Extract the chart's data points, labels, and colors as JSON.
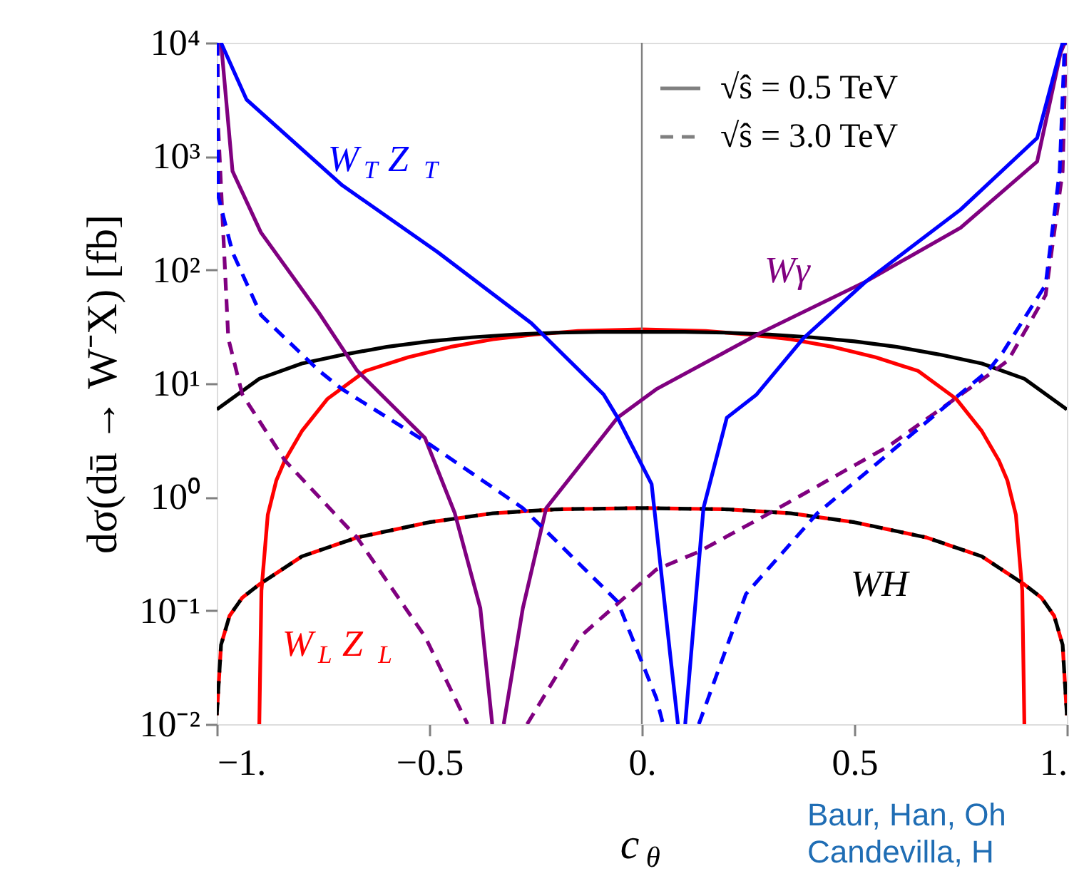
{
  "chart_data": {
    "type": "line",
    "xlabel": "c$_{θ}$",
    "ylabel": "dσ(dū → W⁻X) [fb]",
    "log": true,
    "grid": false,
    "marker": "none",
    "xlim": [
      -1,
      1
    ],
    "ylim": [
      0.01,
      10000
    ],
    "xticks": [
      {
        "value": -1,
        "label": "−1."
      },
      {
        "value": -0.5,
        "label": "−0.5"
      },
      {
        "value": 0,
        "label": "0."
      },
      0.5,
      {
        "value": 1,
        "label": "1."
      }
    ],
    "yticks": [
      {
        "value": 0.01,
        "label": "10⁻²"
      },
      {
        "value": 0.1,
        "label": "10⁻¹"
      },
      {
        "value": 1,
        "label": "10⁰"
      },
      {
        "value": 10,
        "label": "10¹"
      },
      {
        "value": 100,
        "label": "10²"
      },
      {
        "value": 1000,
        "label": "10³"
      },
      {
        "value": 10000,
        "label": "10⁴"
      }
    ],
    "ref_lines": [
      {
        "axis": "x",
        "value": 0,
        "color": "#808080"
      }
    ],
    "series": [
      {
        "name": "W$_{L}$Z$_{L}$",
        "color": "#ff0000",
        "line_style": "solid",
        "x": [
          -0.9,
          -0.895,
          -0.88,
          -0.86,
          -0.84,
          -0.8,
          -0.74,
          -0.65,
          -0.55,
          -0.45,
          -0.35,
          -0.25,
          -0.15,
          0,
          0.15,
          0.25,
          0.35,
          0.45,
          0.55,
          0.65,
          0.74,
          0.8,
          0.84,
          0.86,
          0.88,
          0.895,
          0.9
        ],
        "values": [
          0.01,
          0.15,
          0.7,
          1.4,
          2.1,
          3.8,
          7.3,
          12.9,
          17,
          21,
          24.5,
          27,
          29,
          30,
          29,
          27,
          24.5,
          21,
          17,
          12.9,
          7.3,
          3.8,
          2.1,
          1.4,
          0.7,
          0.15,
          0.01
        ]
      },
      {
        "color": "#ff0000",
        "line_style": "dashed",
        "x": [
          -1,
          -0.99,
          -0.97,
          -0.94,
          -0.9,
          -0.8,
          -0.67,
          -0.5,
          -0.35,
          -0.2,
          0,
          0.2,
          0.35,
          0.5,
          0.67,
          0.8,
          0.9,
          0.94,
          0.97,
          0.99,
          1
        ],
        "values": [
          0.012,
          0.05,
          0.09,
          0.13,
          0.17,
          0.3,
          0.44,
          0.6,
          0.72,
          0.78,
          0.8,
          0.78,
          0.72,
          0.6,
          0.44,
          0.3,
          0.17,
          0.13,
          0.09,
          0.05,
          0.012
        ]
      },
      {
        "name": "WH",
        "color": "#000000",
        "line_style": "solid",
        "x": [
          -1,
          -0.9,
          -0.8,
          -0.7,
          -0.6,
          -0.5,
          -0.4,
          -0.3,
          -0.2,
          -0.1,
          0,
          0.1,
          0.2,
          0.3,
          0.4,
          0.5,
          0.6,
          0.7,
          0.8,
          0.9,
          1
        ],
        "values": [
          5.9,
          11,
          15,
          18,
          21,
          23.5,
          25.5,
          27,
          28,
          28.5,
          28.5,
          28.5,
          28,
          27,
          25.5,
          23.5,
          21,
          18,
          15,
          11,
          5.9
        ]
      },
      {
        "color": "#000000",
        "line_style": "dashed",
        "x": [
          -1,
          -0.99,
          -0.97,
          -0.94,
          -0.9,
          -0.8,
          -0.67,
          -0.5,
          -0.35,
          -0.2,
          0,
          0.2,
          0.35,
          0.5,
          0.67,
          0.8,
          0.9,
          0.94,
          0.97,
          0.99,
          1
        ],
        "values": [
          0.012,
          0.05,
          0.09,
          0.13,
          0.17,
          0.3,
          0.44,
          0.6,
          0.72,
          0.78,
          0.8,
          0.78,
          0.72,
          0.6,
          0.44,
          0.3,
          0.17,
          0.13,
          0.09,
          0.05,
          0.012
        ]
      },
      {
        "name": "Wγ",
        "color": "#800080",
        "line_style": "solid",
        "x": [
          -0.99,
          -0.963,
          -0.896,
          -0.76,
          -0.67,
          -0.51,
          -0.44,
          -0.38,
          -0.352,
          null,
          -0.325,
          -0.28,
          -0.225,
          -0.057,
          0.034,
          0.28,
          0.527,
          0.75,
          0.93,
          0.985,
          0.995
        ],
        "values": [
          10000,
          740,
          213,
          42,
          13,
          3.3,
          0.72,
          0.105,
          0.01,
          null,
          0.01,
          0.105,
          0.8,
          5,
          8.9,
          28,
          79,
          235,
          900,
          8100,
          10000
        ]
      },
      {
        "color": "#800080",
        "line_style": "dashed",
        "x": [
          -0.998,
          -0.997,
          -0.973,
          -0.94,
          -0.84,
          -0.67,
          -0.51,
          -0.41,
          null,
          -0.27,
          -0.145,
          0.034,
          0.134,
          0.3,
          0.58,
          0.83,
          0.862,
          0.95,
          0.99,
          0.998
        ],
        "values": [
          10000,
          1900,
          25,
          8,
          2.1,
          0.44,
          0.059,
          0.01,
          null,
          0.01,
          0.059,
          0.23,
          0.33,
          0.72,
          2.8,
          13,
          16,
          60,
          740,
          10000
        ]
      },
      {
        "name": "W$_{T}$Z$_{T}$",
        "color": "#0000ff",
        "line_style": "solid",
        "x": [
          -0.99,
          -0.93,
          -0.705,
          -0.48,
          -0.26,
          -0.09,
          -0.057,
          0.023,
          0.067,
          0.085,
          null,
          0.102,
          0.145,
          0.2,
          0.27,
          0.38,
          0.527,
          0.75,
          0.93,
          0.983,
          0.99
        ],
        "values": [
          10000,
          3160,
          556,
          143,
          34,
          8,
          5,
          1.3,
          0.04,
          0.01,
          null,
          0.01,
          0.8,
          5,
          8,
          25,
          79,
          340,
          1450,
          8100,
          10000
        ]
      },
      {
        "color": "#0000ff",
        "line_style": "dashed",
        "x": [
          -0.999,
          -0.997,
          -0.963,
          -0.896,
          -0.76,
          -0.705,
          -0.51,
          -0.28,
          -0.057,
          0.034,
          0.05,
          null,
          0.134,
          0.245,
          0.413,
          0.64,
          0.815,
          0.85,
          0.95,
          0.983,
          0.995
        ],
        "values": [
          10000,
          450,
          143,
          40,
          13,
          8.9,
          3.1,
          0.8,
          0.12,
          0.017,
          0.01,
          null,
          0.01,
          0.14,
          0.72,
          3.7,
          13,
          19,
          74,
          740,
          10000
        ]
      }
    ],
    "annotations": [
      "√ŝ = 0.5 TeV",
      "√ŝ = 3.0 TeV",
      "Baur, Han, Oh",
      "Candevilla, H"
    ]
  }
}
